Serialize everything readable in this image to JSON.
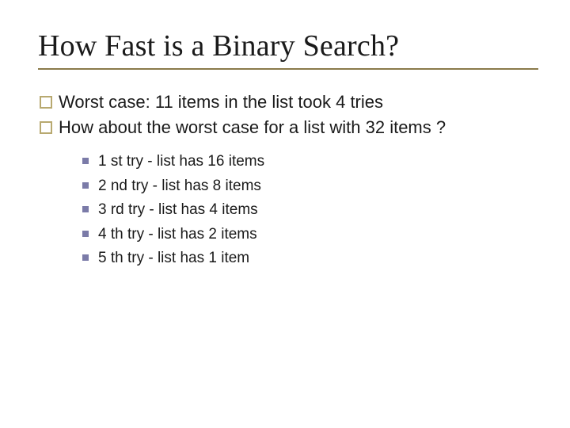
{
  "slide": {
    "title": "How Fast is a Binary Search?",
    "title_fontsize": 38,
    "title_color": "#1a1a1a",
    "title_underline_color": "#8a7a4a",
    "background_color": "#ffffff",
    "bullets": [
      {
        "text": "Worst case: 11 items in the list took 4 tries"
      },
      {
        "text": "How about the worst case for a list with 32 items ?"
      }
    ],
    "bullet_marker": {
      "shape": "hollow-square",
      "size": 12,
      "border_color": "#b8a970",
      "border_width": 2
    },
    "bullet_fontsize": 22,
    "subbullets": [
      {
        "text": "1 st try - list has 16 items"
      },
      {
        "text": "2 nd try - list has 8 items"
      },
      {
        "text": "3 rd try - list has 4 items"
      },
      {
        "text": "4 th try - list has 2 items"
      },
      {
        "text": "5 th try - list has 1 item"
      }
    ],
    "subbullet_marker": {
      "shape": "filled-square",
      "size": 8,
      "fill_color": "#7b7ba8"
    },
    "subbullet_fontsize": 19,
    "body_font": "Arial",
    "title_font": "Times New Roman"
  }
}
